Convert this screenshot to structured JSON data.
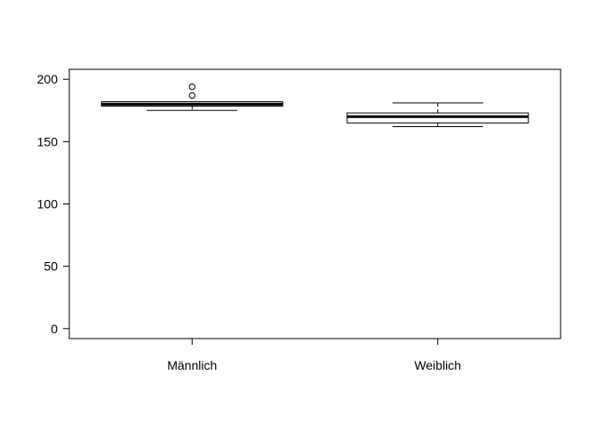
{
  "chart_data": {
    "type": "box",
    "categories": [
      "Männlich",
      "Weiblich"
    ],
    "series": [
      {
        "stats": [
          {
            "whisker_low": 175,
            "q1": 178.5,
            "median": 180,
            "q3": 182,
            "whisker_high": 182,
            "outliers": [
              187,
              194
            ]
          },
          {
            "whisker_low": 162,
            "q1": 165,
            "median": 170,
            "q3": 173,
            "whisker_high": 181,
            "outliers": []
          }
        ]
      }
    ],
    "title": "",
    "xlabel": "",
    "ylabel": "",
    "ylim": [
      -8,
      208
    ],
    "yticks": [
      0,
      50,
      100,
      150,
      200
    ],
    "ytick_labels": [
      "0",
      "50",
      "100",
      "150",
      "200"
    ],
    "grid": false,
    "color": "#000000"
  }
}
